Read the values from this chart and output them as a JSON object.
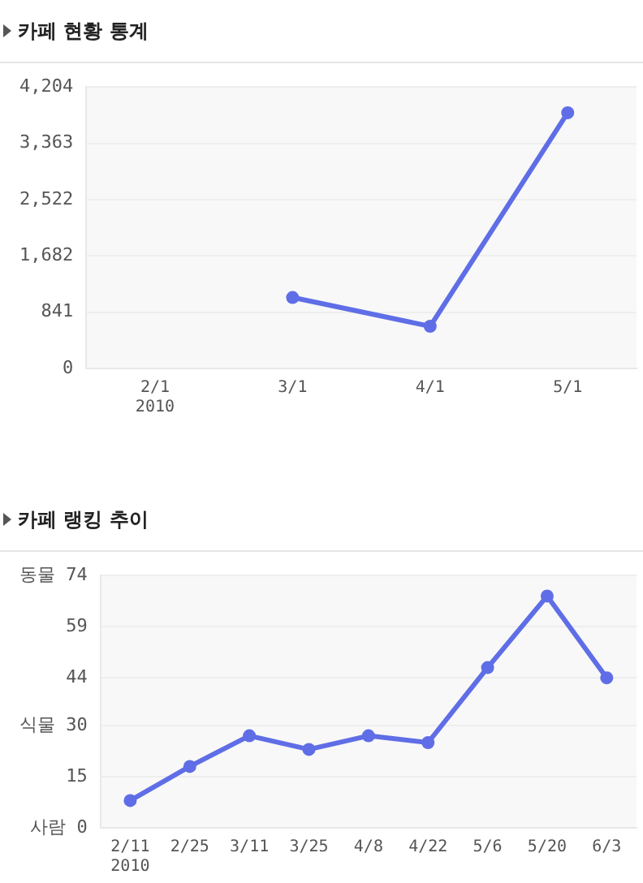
{
  "chart_data": [
    {
      "type": "line",
      "title": "카페 현황 통계",
      "categories": [
        "2/1\n2010",
        "3/1",
        "4/1",
        "5/1"
      ],
      "series": [
        {
          "color": "#5f6ee6",
          "values": [
            null,
            1060,
            630,
            3820
          ]
        }
      ],
      "ylim": [
        0,
        4204
      ],
      "yticks": [
        0,
        841,
        {
          "value": 1682,
          "label": "1,682"
        },
        {
          "value": 2522,
          "label": "2,522"
        },
        {
          "value": 3363,
          "label": "3,363"
        },
        {
          "value": 4204,
          "label": "4,204"
        }
      ],
      "grid": "y",
      "marker": "circle",
      "legend": false
    },
    {
      "type": "line",
      "title": "카페 랭킹 추이",
      "categories": [
        "2/11\n2010",
        "2/25",
        "3/11",
        "3/25",
        "4/8",
        "4/22",
        "5/6",
        "5/20",
        "6/3"
      ],
      "series": [
        {
          "color": "#5f6ee6",
          "values": [
            8,
            18,
            27,
            23,
            27,
            25,
            47,
            68,
            44
          ]
        }
      ],
      "ylim": [
        0,
        74
      ],
      "yticks": [
        {
          "value": 0,
          "label": "사람 0"
        },
        15,
        {
          "value": 30,
          "label": "식물 30"
        },
        44,
        59,
        {
          "value": 74,
          "label": "동물 74"
        }
      ],
      "grid": "y",
      "marker": "circle",
      "legend": false
    }
  ]
}
